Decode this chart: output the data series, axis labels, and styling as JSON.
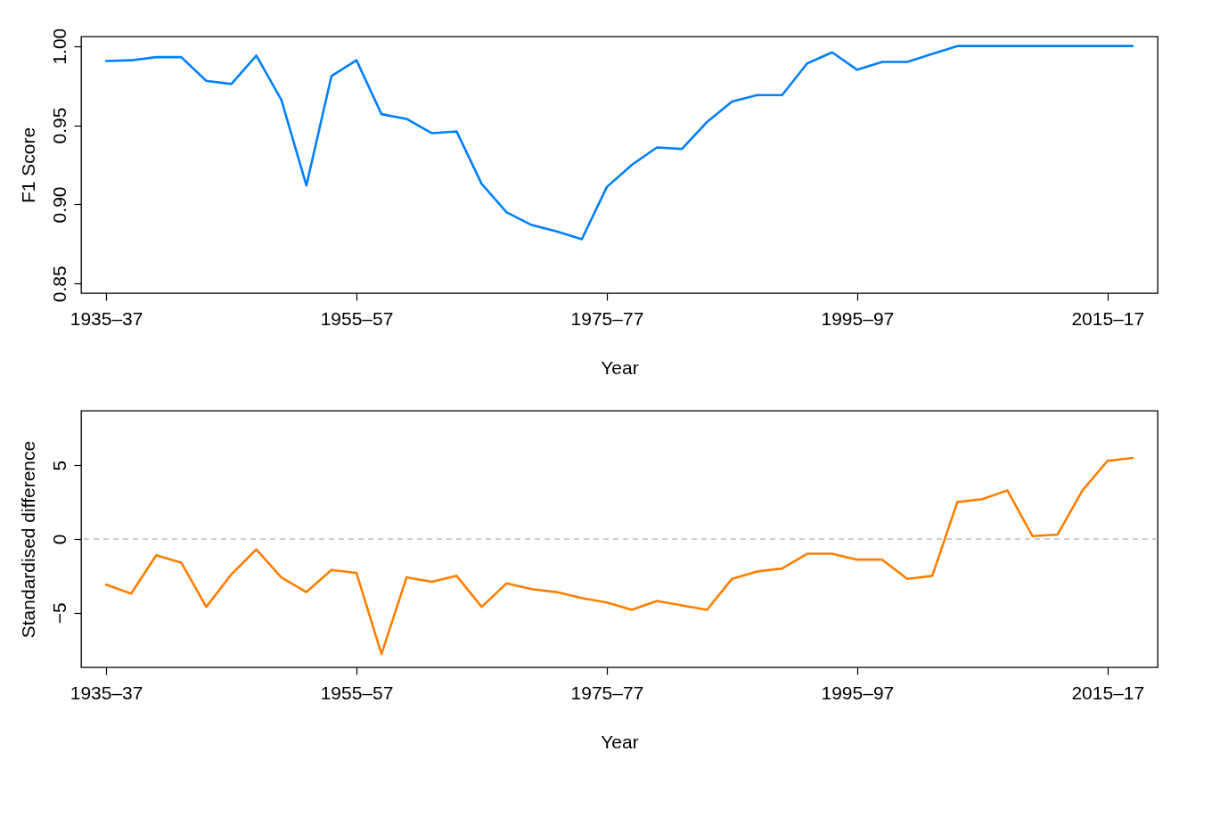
{
  "chart_data": [
    {
      "type": "line",
      "xlabel": "Year",
      "ylabel": "F1 Score",
      "categories": [
        "1935–37",
        null,
        null,
        null,
        null,
        null,
        null,
        null,
        null,
        null,
        "1955–57",
        null,
        null,
        null,
        null,
        null,
        null,
        null,
        null,
        null,
        "1975–77",
        null,
        null,
        null,
        null,
        null,
        null,
        null,
        null,
        null,
        "1995–97",
        null,
        null,
        null,
        null,
        null,
        null,
        null,
        null,
        null,
        "2015–17",
        null
      ],
      "series": [
        {
          "color": "#0080ff",
          "values": [
            0.9905,
            0.991,
            0.993,
            0.993,
            0.978,
            0.976,
            0.994,
            0.966,
            0.912,
            0.981,
            0.991,
            0.957,
            0.954,
            0.945,
            0.946,
            0.913,
            0.895,
            0.887,
            0.883,
            0.878,
            0.911,
            0.925,
            0.936,
            0.935,
            0.952,
            0.965,
            0.969,
            0.969,
            0.989,
            0.996,
            0.985,
            0.99,
            0.99,
            0.995,
            1.0,
            1.0,
            1.0,
            1.0,
            1.0,
            1.0,
            1.0,
            1.0
          ]
        }
      ],
      "ylim": [
        0.844,
        1.006
      ],
      "yticks": [
        {
          "value": 0.85,
          "label": "0.85"
        },
        {
          "value": 0.9,
          "label": "0.90"
        },
        {
          "value": 0.95,
          "label": "0.95"
        },
        {
          "value": 1.0,
          "label": "1.00"
        }
      ]
    },
    {
      "type": "line",
      "xlabel": "Year",
      "ylabel": "Standardised difference",
      "categories": [
        "1935–37",
        null,
        null,
        null,
        null,
        null,
        null,
        null,
        null,
        null,
        "1955–57",
        null,
        null,
        null,
        null,
        null,
        null,
        null,
        null,
        null,
        "1975–77",
        null,
        null,
        null,
        null,
        null,
        null,
        null,
        null,
        null,
        "1995–97",
        null,
        null,
        null,
        null,
        null,
        null,
        null,
        null,
        null,
        "2015–17",
        null
      ],
      "series": [
        {
          "color": "#ff7f00",
          "values": [
            -3.1,
            -3.7,
            -1.1,
            -1.6,
            -4.6,
            -2.4,
            -0.7,
            -2.6,
            -3.6,
            -2.1,
            -2.3,
            -7.8,
            -2.6,
            -2.9,
            -2.5,
            -4.6,
            -3.0,
            -3.4,
            -3.6,
            -4.0,
            -4.3,
            -4.8,
            -4.2,
            -4.5,
            -4.8,
            -2.7,
            -2.2,
            -2.0,
            -1.0,
            -1.0,
            -1.4,
            -1.4,
            -2.7,
            -2.5,
            2.5,
            2.7,
            3.3,
            0.2,
            0.3,
            3.3,
            5.3,
            5.5
          ]
        }
      ],
      "ylim": [
        -8.7,
        8.7
      ],
      "yticks": [
        {
          "value": -5,
          "label": "−5"
        },
        0,
        5
      ],
      "ref_lines": [
        {
          "axis": "y",
          "value": 0,
          "color": "#bebebe",
          "line_style": "dashed"
        }
      ]
    }
  ]
}
